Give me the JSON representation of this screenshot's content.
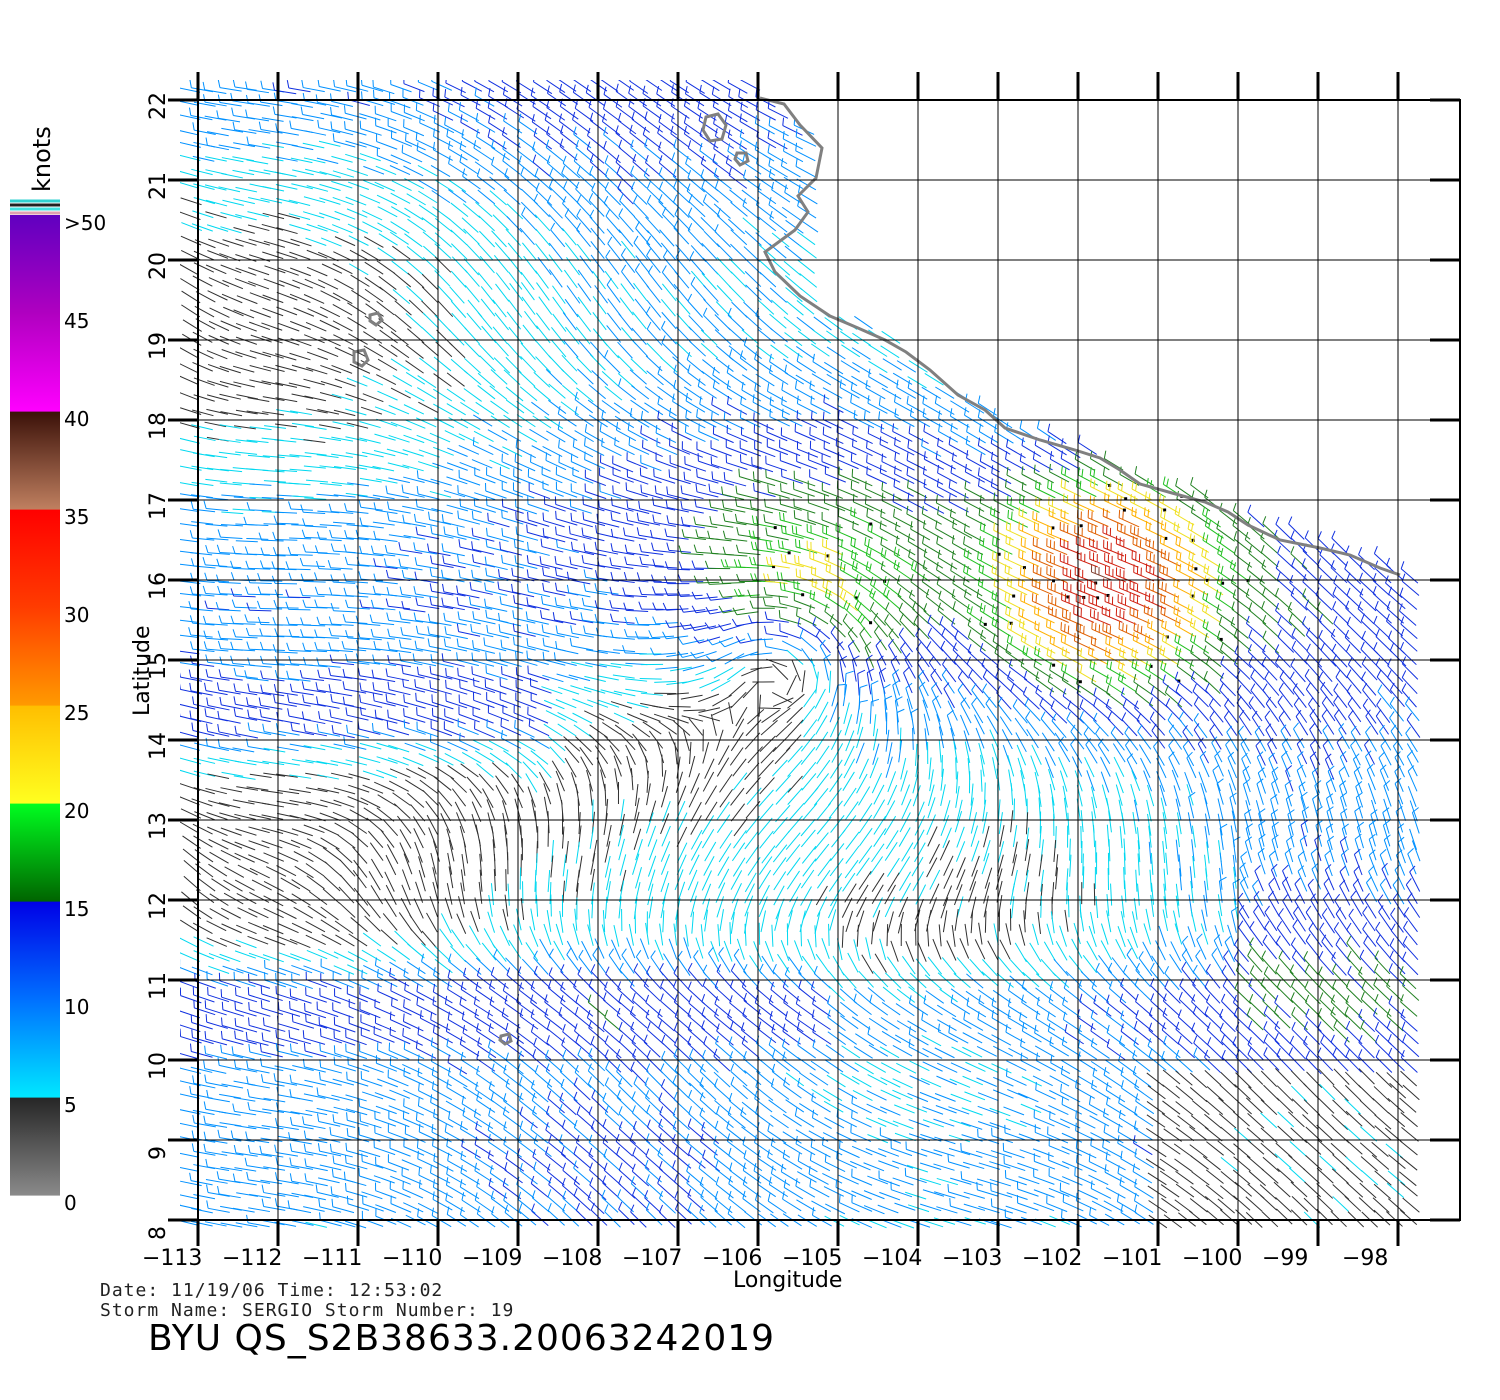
{
  "map": {
    "x_axis_label": "Longitude",
    "y_axis_label": "Latitude",
    "lon_ticks": [
      "−113",
      "−112",
      "−111",
      "−110",
      "−109",
      "−108",
      "−107",
      "−106",
      "−105",
      "−104",
      "−103",
      "−102",
      "−101",
      "−100",
      "−99",
      "−98"
    ],
    "lat_ticks": [
      "22",
      "21",
      "20",
      "19",
      "18",
      "17",
      "16",
      "15",
      "14",
      "13",
      "12",
      "11",
      "10",
      "9",
      "8"
    ],
    "lon_values": [
      -113,
      -112,
      -111,
      -110,
      -109,
      -108,
      -107,
      -106,
      -105,
      -104,
      -103,
      -102,
      -101,
      -100,
      -99,
      -98
    ],
    "lat_values": [
      22,
      21,
      20,
      19,
      18,
      17,
      16,
      15,
      14,
      13,
      12,
      11,
      10,
      9,
      8
    ],
    "lon_range": [
      -113,
      -97.6
    ],
    "lat_range": [
      8,
      22
    ],
    "grid": true,
    "vector_type": "wind barbs colored by speed",
    "storm_center_approx": {
      "lon": -105.4,
      "lat": 15.2
    },
    "max_wind_region_approx": {
      "lon": -101.5,
      "lat": 15.9
    }
  },
  "colorbar": {
    "title": "knots",
    "labels": [
      ">50",
      "45",
      "40",
      "35",
      "30",
      "25",
      "20",
      "15",
      "10",
      "5",
      "0"
    ],
    "stops": [
      {
        "from": 0,
        "to": 5,
        "colors": [
          "#8a8a8a",
          "#252525"
        ]
      },
      {
        "from": 5,
        "to": 10,
        "colors": [
          "#00e8ff",
          "#0070ff"
        ]
      },
      {
        "from": 10,
        "to": 15,
        "colors": [
          "#0070ff",
          "#0000e6"
        ]
      },
      {
        "from": 15,
        "to": 20,
        "colors": [
          "#006400",
          "#00ff20"
        ]
      },
      {
        "from": 20,
        "to": 25,
        "colors": [
          "#ffff20",
          "#ffbe00"
        ]
      },
      {
        "from": 25,
        "to": 30,
        "colors": [
          "#ff9a00",
          "#ff3c00"
        ]
      },
      {
        "from": 30,
        "to": 35,
        "colors": [
          "#ff3c00",
          "#ff0000"
        ]
      },
      {
        "from": 35,
        "to": 40,
        "colors": [
          "#c08060",
          "#3a1008"
        ]
      },
      {
        "from": 40,
        "to": 45,
        "colors": [
          "#ff00ff",
          "#b000c0"
        ]
      },
      {
        "from": 45,
        "to": 50,
        "colors": [
          "#b000c0",
          "#6000c0"
        ]
      }
    ]
  },
  "footer": {
    "date_line": "Date: 11/19/06   Time: 12:53:02",
    "storm_line": "Storm Name: SERGIO   Storm Number: 19",
    "title": "BYU QS_S2B38633.20063242019"
  }
}
